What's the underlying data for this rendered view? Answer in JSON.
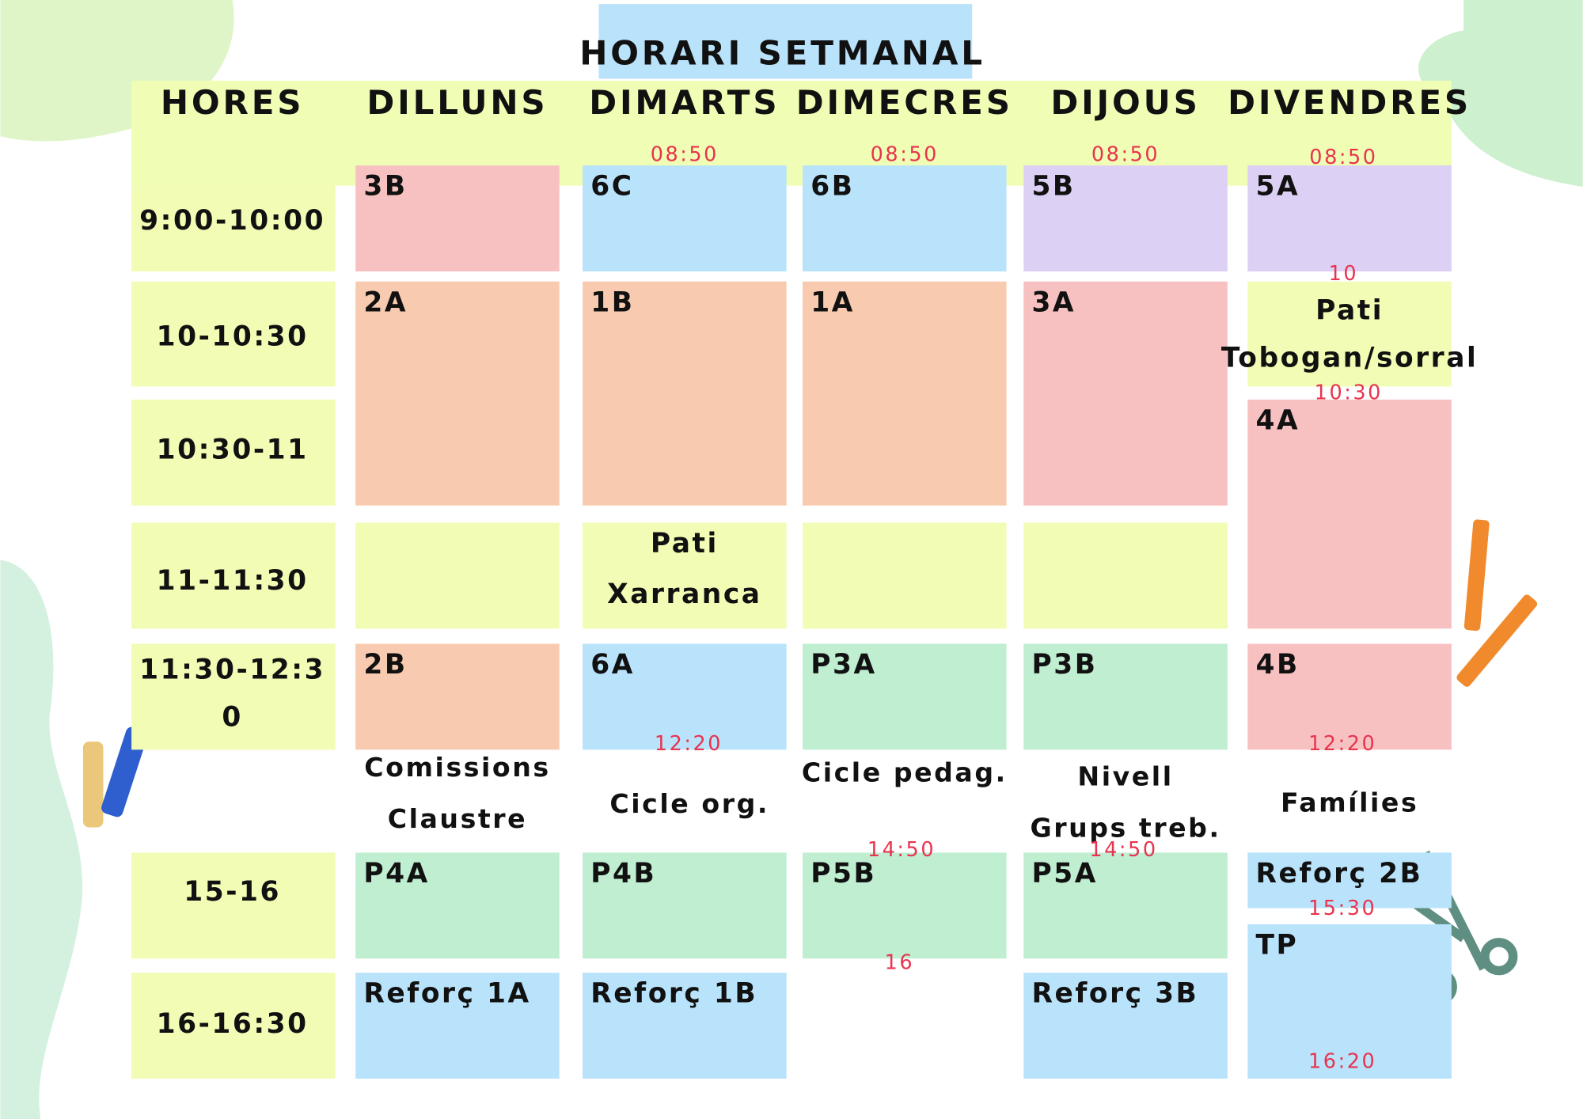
{
  "title": "HORARI SETMANAL",
  "headers": [
    "HORES",
    "DILLUNS",
    "DIMARTS",
    "DIMECRES",
    "DIJOUS",
    "DIVENDRES"
  ],
  "hours": [
    [
      "9:00-10:00"
    ],
    [
      "10-10:30"
    ],
    [
      "10:30-11"
    ],
    [
      "11-11:30"
    ],
    [
      "11:30-12:3",
      "0"
    ],
    [
      "15-16"
    ],
    [
      "16-16:30"
    ]
  ],
  "cells": [
    {
      "lines": [
        "3B"
      ],
      "color": "#f8c1c1"
    },
    {
      "lines": [
        "2A"
      ],
      "color": "#f8cbb0"
    },
    {
      "color": "#f2fcb4"
    },
    {
      "lines": [
        "2B"
      ],
      "color": "#f8cbb0"
    },
    {
      "lines": [
        "P4A"
      ],
      "color": "#bfeed1"
    },
    {
      "lines": [
        "Reforç 1A"
      ],
      "color": "#b9e3fb"
    },
    {
      "lines": [
        "6C"
      ],
      "color": "#b9e3fb"
    },
    {
      "lines": [
        "1B"
      ],
      "color": "#f8cbb0"
    },
    {
      "lines": [
        "Pati",
        "Xarranca"
      ],
      "color": "#f2fcb4"
    },
    {
      "lines": [
        "6A"
      ],
      "color": "#b9e3fb"
    },
    {
      "lines": [
        "P4B"
      ],
      "color": "#bfeed1"
    },
    {
      "lines": [
        "Reforç 1B"
      ],
      "color": "#b9e3fb"
    },
    {
      "lines": [
        "6B"
      ],
      "color": "#b9e3fb"
    },
    {
      "lines": [
        "1A"
      ],
      "color": "#f8cbb0"
    },
    {
      "color": "#f2fcb4"
    },
    {
      "lines": [
        "P3A"
      ],
      "color": "#bfeed1"
    },
    {
      "lines": [
        "P5B"
      ],
      "color": "#bfeed1"
    },
    {
      "lines": [
        "5B"
      ],
      "color": "#ddd0f5"
    },
    {
      "lines": [
        "3A"
      ],
      "color": "#f8c1c1"
    },
    {
      "color": "#f2fcb4"
    },
    {
      "lines": [
        "P3B"
      ],
      "color": "#bfeed1"
    },
    {
      "lines": [
        "P5A"
      ],
      "color": "#bfeed1"
    },
    {
      "lines": [
        "Reforç 3B"
      ],
      "color": "#b9e3fb"
    },
    {
      "lines": [
        "5A"
      ],
      "color": "#ddd0f5"
    },
    {
      "lines": [
        "Pati",
        "Tobogan/sorral"
      ],
      "color": "#f2fcb4"
    },
    {
      "lines": [
        "4A"
      ],
      "color": "#f8c1c1"
    },
    {
      "lines": [
        "4B"
      ],
      "color": "#f8c1c1"
    },
    {
      "lines": [
        "Reforç 2B"
      ],
      "color": "#b9e3fb"
    },
    {
      "lines": [
        "TP"
      ],
      "color": "#b9e3fb"
    }
  ],
  "notes": [
    [
      "Comissions",
      "Claustre"
    ],
    [
      "Cicle org."
    ],
    [
      "Cicle pedag."
    ],
    [
      "Nivell",
      "Grups treb."
    ],
    [
      "Famílies"
    ]
  ],
  "times": [
    "08:50",
    "08:50",
    "08:50",
    "08:50",
    "10",
    "10:30",
    "12:20",
    "12:20",
    "14:50",
    "14:50",
    "16",
    "15:30",
    "16:20"
  ]
}
